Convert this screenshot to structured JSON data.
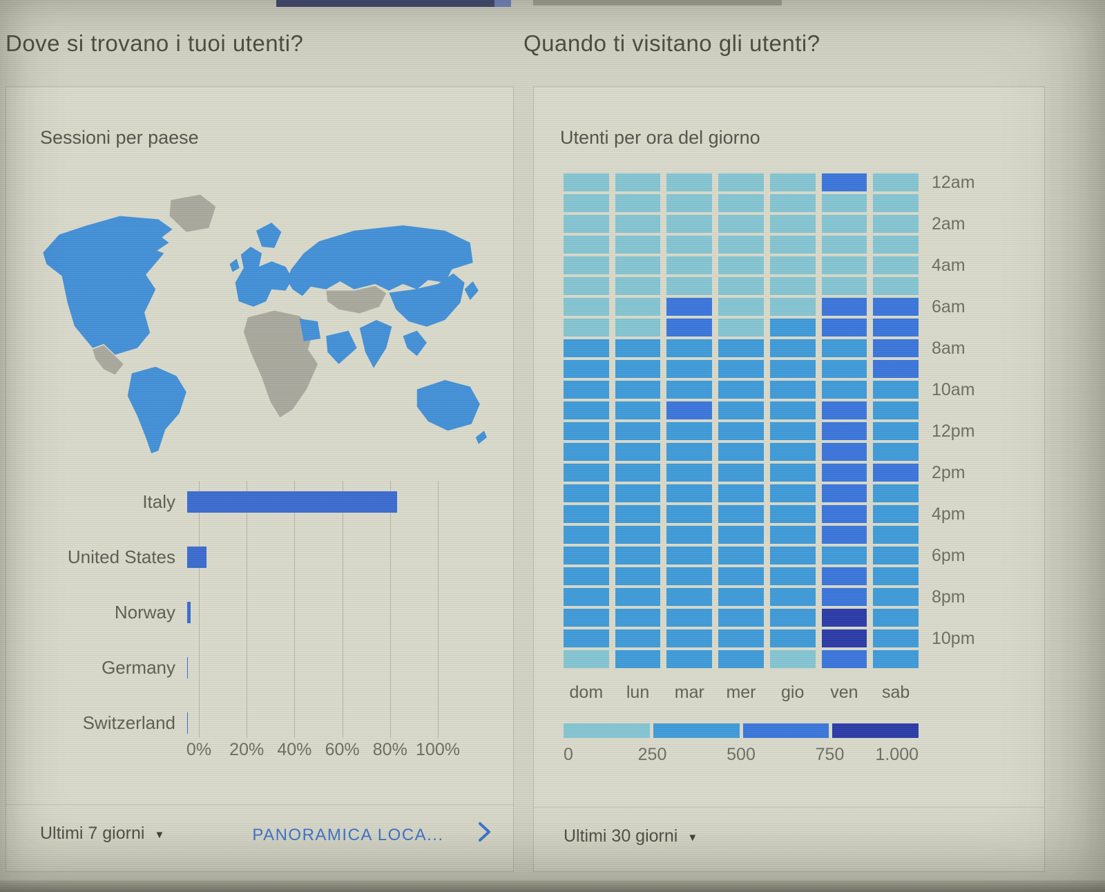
{
  "page": {
    "left_title": "Dove si trovano i tuoi utenti?",
    "right_title": "Quando ti visitano gli utenti?"
  },
  "left_card": {
    "header": "Sessioni per paese",
    "footer": {
      "range_label": "Ultimi 7 giorni",
      "link_label": "PANORAMICA LOCA..."
    }
  },
  "right_card": {
    "header": "Utenti per ora del giorno",
    "footer": {
      "range_label": "Ultimi 30 giorni"
    }
  },
  "map": {
    "highlighted_regions": [
      "North America",
      "South America",
      "Europe",
      "Russia",
      "China",
      "India",
      "Middle East",
      "Southeast Asia",
      "Australia",
      "New Zealand"
    ],
    "muted_regions": [
      "Greenland",
      "Mexico",
      "Africa",
      "Central Asia"
    ]
  },
  "colors": {
    "bar": "#3b6cd1",
    "link": "#3e74cf",
    "map_active": "#4390d8",
    "map_inactive": "#a9a99e",
    "heat_scale": [
      "#85c5d3",
      "#3f9bd9",
      "#3b76dc",
      "#2b3ba8"
    ]
  },
  "chart_data": [
    {
      "type": "bar",
      "orientation": "horizontal",
      "title": "Sessioni per paese",
      "categories": [
        "Italy",
        "United States",
        "Norway",
        "Germany",
        "Switzerland"
      ],
      "values": [
        88,
        8,
        1.5,
        0.4,
        0.2
      ],
      "unit": "%",
      "xlim": [
        0,
        100
      ],
      "xticks": [
        "0%",
        "20%",
        "40%",
        "60%",
        "80%",
        "100%"
      ],
      "grid": true,
      "legend": "none"
    },
    {
      "type": "heatmap",
      "title": "Utenti per ora del giorno",
      "x_categories": [
        "dom",
        "lun",
        "mar",
        "mer",
        "gio",
        "ven",
        "sab"
      ],
      "y_hours": [
        "12am",
        "1am",
        "2am",
        "3am",
        "4am",
        "5am",
        "6am",
        "7am",
        "8am",
        "9am",
        "10am",
        "11am",
        "12pm",
        "1pm",
        "2pm",
        "3pm",
        "4pm",
        "5pm",
        "6pm",
        "7pm",
        "8pm",
        "9pm",
        "10pm",
        "11pm"
      ],
      "y_tick_labels": [
        "12am",
        "2am",
        "4am",
        "6am",
        "8am",
        "10am",
        "12pm",
        "2pm",
        "4pm",
        "6pm",
        "8pm",
        "10pm"
      ],
      "values": [
        [
          120,
          120,
          120,
          120,
          120,
          620,
          120
        ],
        [
          120,
          120,
          120,
          120,
          120,
          120,
          120
        ],
        [
          120,
          120,
          120,
          120,
          120,
          120,
          120
        ],
        [
          120,
          120,
          120,
          120,
          120,
          120,
          120
        ],
        [
          120,
          120,
          120,
          120,
          120,
          120,
          120
        ],
        [
          120,
          120,
          120,
          120,
          120,
          120,
          120
        ],
        [
          120,
          120,
          620,
          120,
          120,
          620,
          620
        ],
        [
          120,
          120,
          620,
          120,
          260,
          620,
          620
        ],
        [
          420,
          420,
          420,
          420,
          420,
          420,
          620
        ],
        [
          420,
          420,
          420,
          420,
          420,
          420,
          620
        ],
        [
          420,
          420,
          420,
          420,
          420,
          420,
          420
        ],
        [
          420,
          420,
          680,
          420,
          420,
          620,
          420
        ],
        [
          420,
          420,
          420,
          420,
          420,
          620,
          420
        ],
        [
          420,
          420,
          420,
          420,
          420,
          620,
          420
        ],
        [
          420,
          420,
          420,
          420,
          420,
          620,
          620
        ],
        [
          420,
          420,
          420,
          420,
          420,
          620,
          420
        ],
        [
          420,
          420,
          420,
          420,
          420,
          620,
          420
        ],
        [
          420,
          420,
          420,
          420,
          420,
          680,
          420
        ],
        [
          420,
          420,
          420,
          420,
          420,
          420,
          420
        ],
        [
          420,
          420,
          420,
          420,
          420,
          620,
          420
        ],
        [
          420,
          420,
          420,
          420,
          420,
          620,
          420
        ],
        [
          420,
          420,
          420,
          420,
          420,
          880,
          420
        ],
        [
          420,
          420,
          420,
          420,
          420,
          960,
          420
        ],
        [
          120,
          420,
          420,
          420,
          120,
          620,
          420
        ]
      ],
      "scale_min": 0,
      "scale_max": 1000,
      "legend_ticks": [
        "0",
        "250",
        "500",
        "750",
        "1.000"
      ],
      "legend_position": "bottom"
    }
  ]
}
